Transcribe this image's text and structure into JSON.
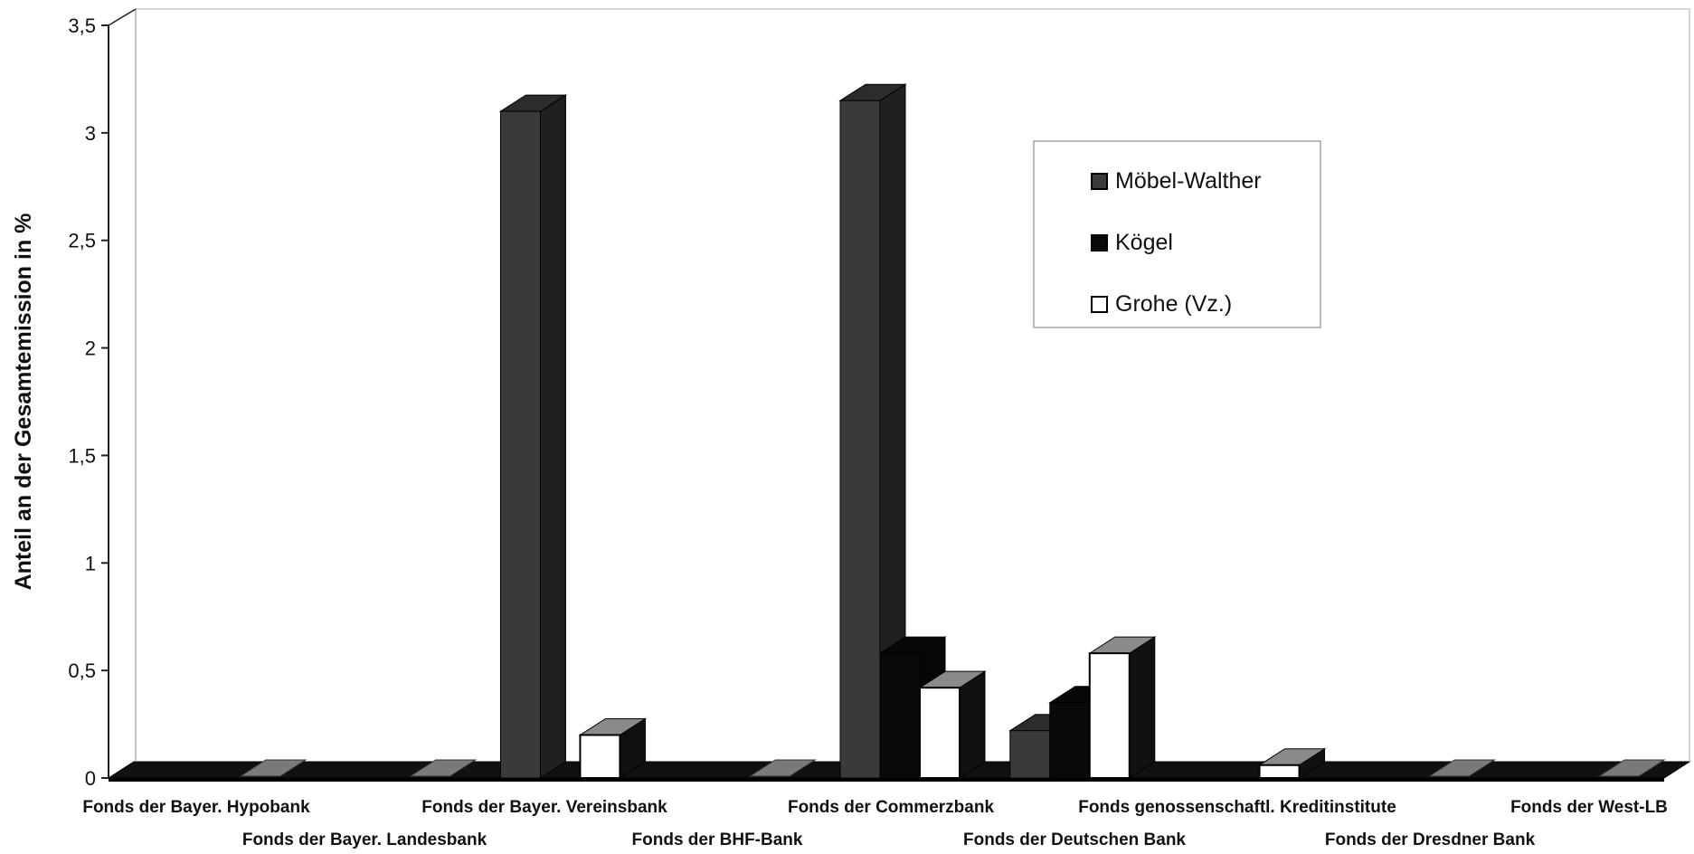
{
  "chart_data": {
    "type": "bar",
    "style": "3d-clustered-column",
    "ylabel": "Anteil an der Gesamtemission in %",
    "xlabel": "",
    "ylim": [
      0,
      3.5
    ],
    "yticks": [
      "0",
      "0,5",
      "1",
      "1,5",
      "2",
      "2,5",
      "3",
      "3,5"
    ],
    "grid": false,
    "legend_position": "top-right",
    "categories": [
      "Fonds der Bayer. Hypobank",
      "Fonds der Bayer. Landesbank",
      "Fonds der Bayer. Vereinsbank",
      "Fonds der BHF-Bank",
      "Fonds der Commerzbank",
      "Fonds der Deutschen Bank",
      "Fonds genossenschaftl. Kreditinstitute",
      "Fonds der Dresdner Bank",
      "Fonds der West-LB"
    ],
    "series": [
      {
        "name": "Möbel-Walther",
        "color": "#3a3a3a",
        "values": [
          0,
          0,
          3.1,
          0,
          3.15,
          0.22,
          0,
          0,
          0
        ]
      },
      {
        "name": "Kögel",
        "color": "#0a0a0a",
        "values": [
          0,
          0,
          0,
          0,
          0.58,
          0.35,
          0,
          0,
          0
        ]
      },
      {
        "name": "Grohe (Vz.)",
        "color": "#ffffff",
        "values": [
          0,
          0,
          0.2,
          0,
          0.42,
          0.58,
          0.06,
          0,
          0
        ]
      }
    ]
  }
}
